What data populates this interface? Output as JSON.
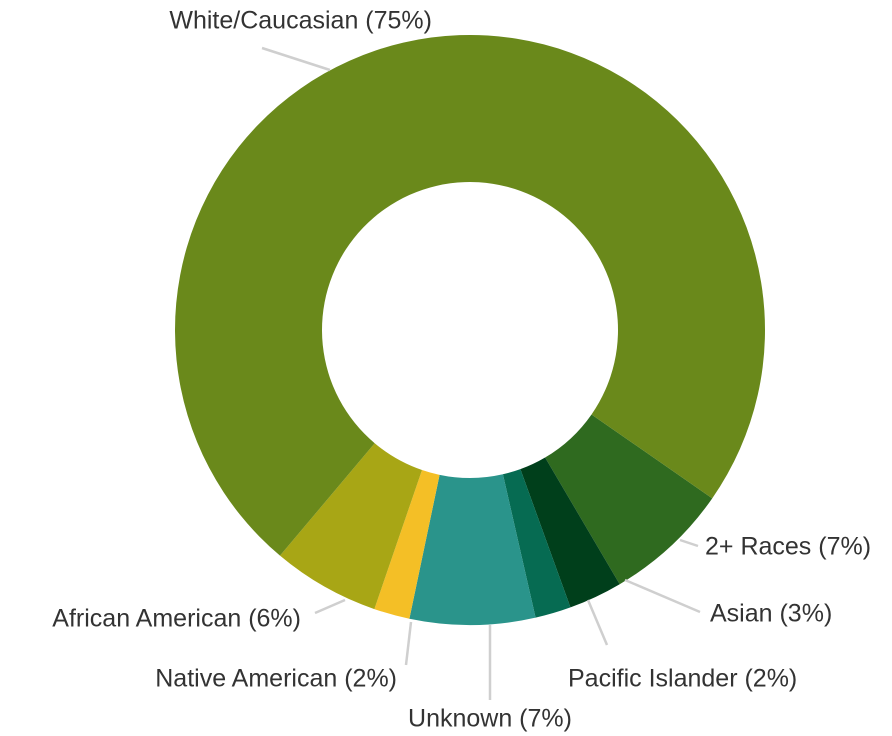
{
  "chart_data": {
    "type": "donut",
    "categories": [
      "2+ Races (7%)",
      "Asian (3%)",
      "Pacific Islander (2%)",
      "Unknown (7%)",
      "Native American (2%)",
      "African American (6%)",
      "White/Caucasian (75%)"
    ],
    "values": [
      7,
      3,
      2,
      7,
      2,
      6,
      75
    ],
    "colors": [
      "#2f6a1f",
      "#003f1b",
      "#066b52",
      "#2a948b",
      "#f4bf26",
      "#a8a615",
      "#6a891b"
    ]
  }
}
